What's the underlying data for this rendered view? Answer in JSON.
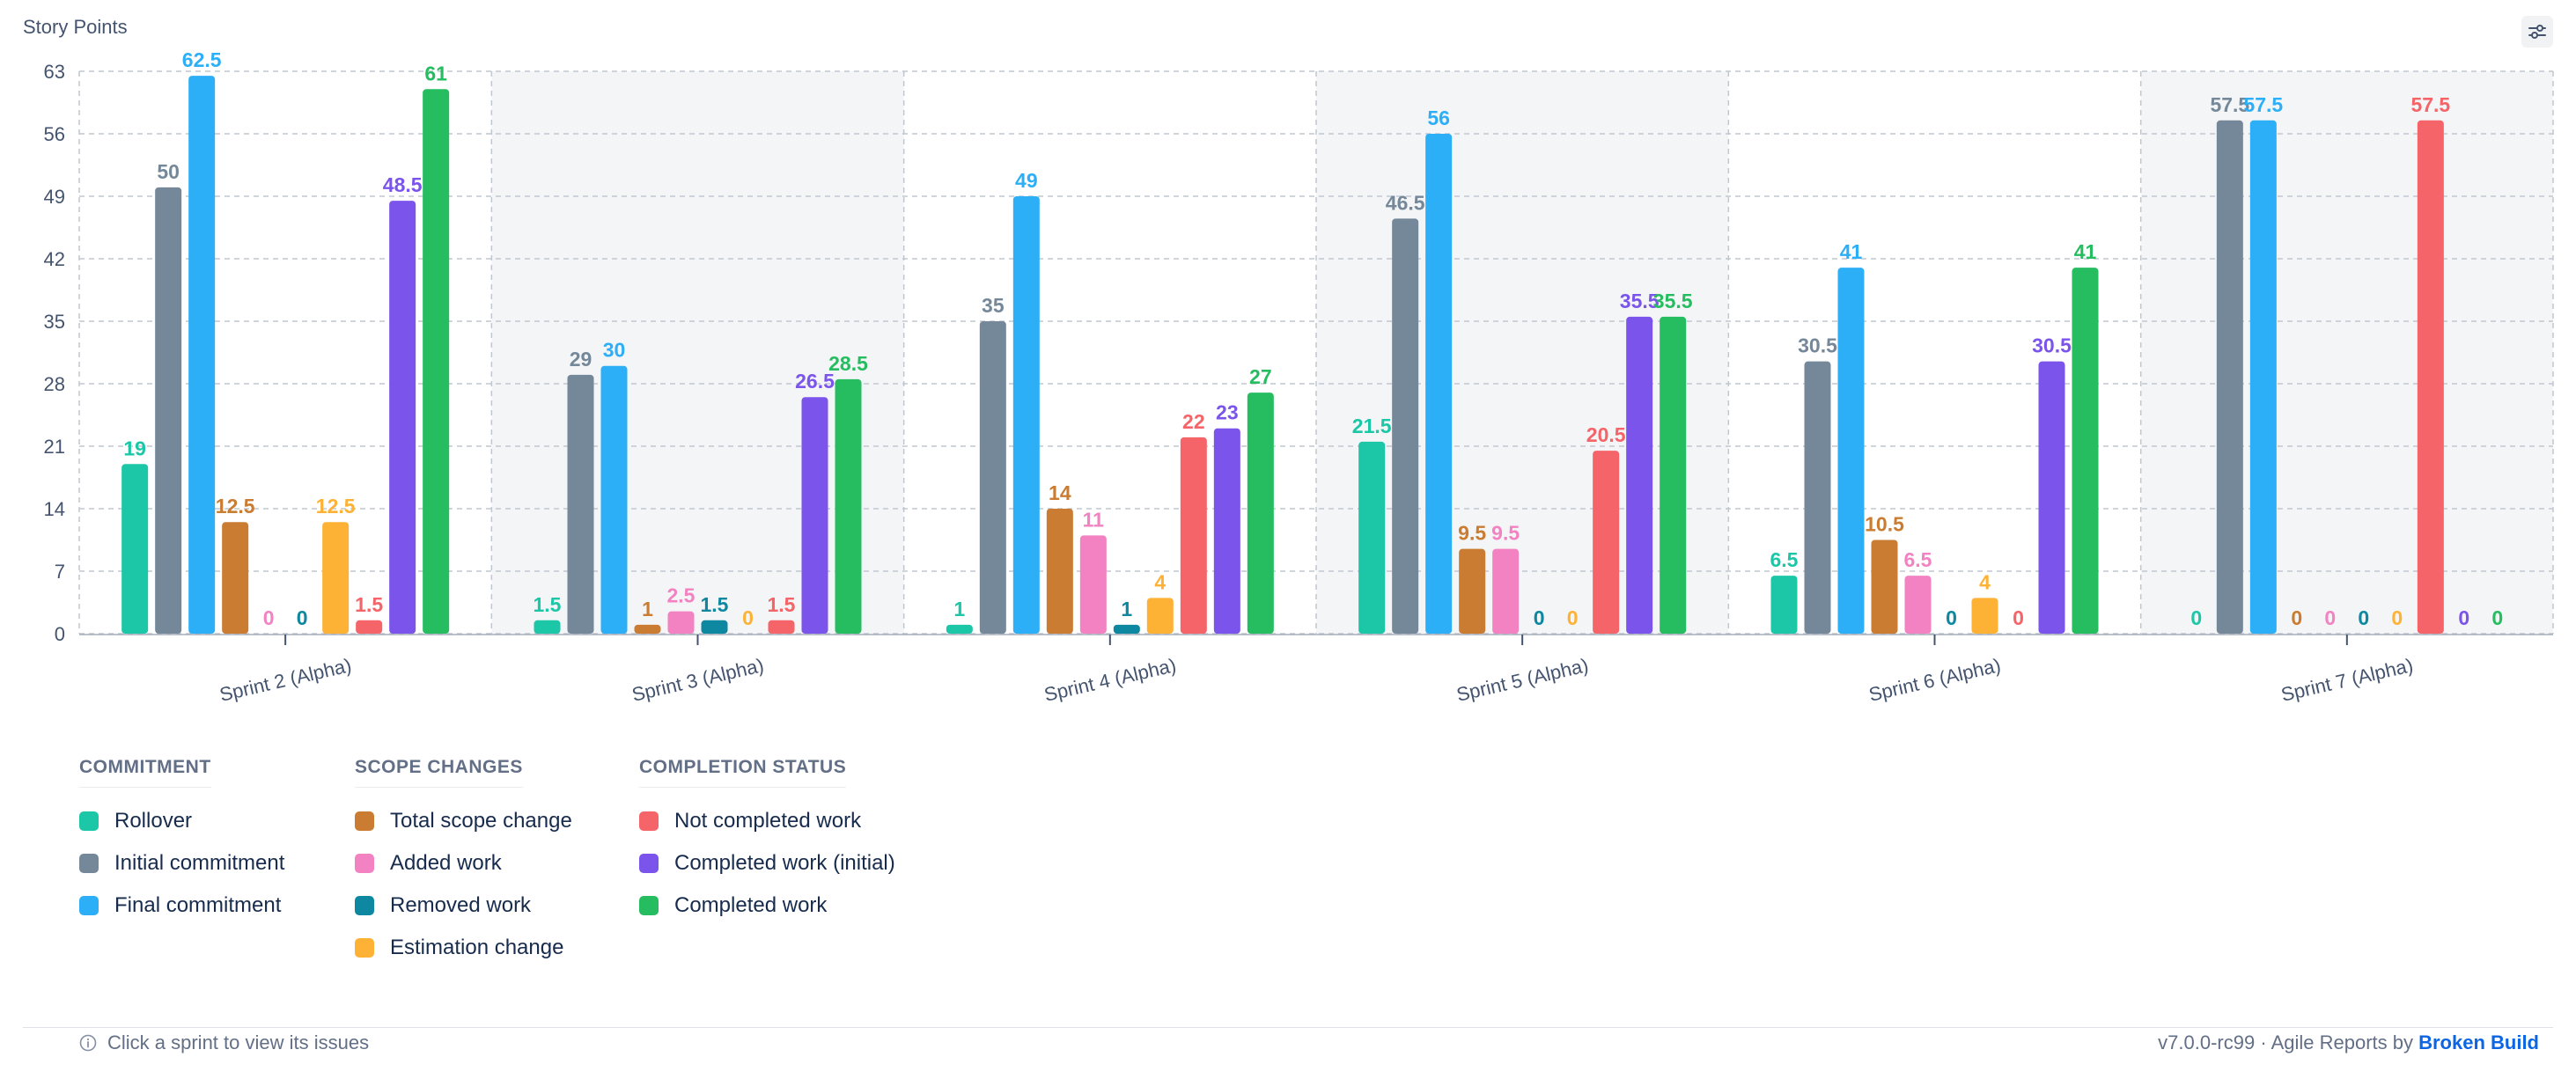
{
  "chart_data": {
    "type": "bar",
    "ylabel": "Story Points",
    "ylim": [
      0,
      63
    ],
    "yticks": [
      "0",
      "7",
      "14",
      "21",
      "28",
      "35",
      "42",
      "49",
      "56",
      "63"
    ],
    "grid": true,
    "categories": [
      "Sprint 2 (Alpha)",
      "Sprint 3 (Alpha)",
      "Sprint 4 (Alpha)",
      "Sprint 5 (Alpha)",
      "Sprint 6 (Alpha)",
      "Sprint 7 (Alpha)"
    ],
    "series": [
      {
        "name": "Rollover",
        "color": "#1cc7a7",
        "values": [
          19,
          1.5,
          1,
          21.5,
          6.5,
          0
        ],
        "labels": [
          "19",
          "1.5",
          "1",
          "21.5",
          "6.5",
          "0"
        ]
      },
      {
        "name": "Initial commitment",
        "color": "#758899",
        "values": [
          50,
          29,
          35,
          46.5,
          30.5,
          57.5
        ],
        "labels": [
          "50",
          "29",
          "35",
          "46.5",
          "30.5",
          "57.5"
        ]
      },
      {
        "name": "Final commitment",
        "color": "#2daff7",
        "values": [
          62.5,
          30,
          49,
          56,
          41,
          57.5
        ],
        "labels": [
          "62.5",
          "30",
          "49",
          "56",
          "41",
          "57.5"
        ]
      },
      {
        "name": "Total scope change",
        "color": "#c97c32",
        "values": [
          12.5,
          1,
          14,
          9.5,
          10.5,
          0
        ],
        "labels": [
          "12.5",
          "1",
          "14",
          "9.5",
          "10.5",
          "0"
        ]
      },
      {
        "name": "Added work",
        "color": "#f282c2",
        "values": [
          0,
          2.5,
          11,
          9.5,
          6.5,
          0
        ],
        "labels": [
          "0",
          "2.5",
          "11",
          "9.5",
          "6.5",
          "0"
        ]
      },
      {
        "name": "Removed work",
        "color": "#0e87a0",
        "values": [
          0,
          1.5,
          1,
          0,
          0,
          0
        ],
        "labels": [
          "0",
          "1.5",
          "1",
          "0",
          "0",
          "0"
        ]
      },
      {
        "name": "Estimation change",
        "color": "#fdb236",
        "values": [
          12.5,
          0,
          4,
          0,
          4,
          0
        ],
        "labels": [
          "12.5",
          "0",
          "4",
          "0",
          "4",
          "0"
        ]
      },
      {
        "name": "Not completed work",
        "color": "#f46468",
        "values": [
          1.5,
          1.5,
          22,
          20.5,
          0,
          57.5
        ],
        "labels": [
          "1.5",
          "1.5",
          "22",
          "20.5",
          "0",
          "57.5"
        ]
      },
      {
        "name": "Completed work (initial)",
        "color": "#7b54eb",
        "values": [
          48.5,
          26.5,
          23,
          35.5,
          30.5,
          0
        ],
        "labels": [
          "48.5",
          "26.5",
          "23",
          "35.5",
          "30.5",
          "0"
        ]
      },
      {
        "name": "Completed work",
        "color": "#25bd5f",
        "values": [
          61,
          28.5,
          27,
          35.5,
          41,
          0
        ],
        "labels": [
          "61",
          "28.5",
          "27",
          "35.5",
          "41",
          "0"
        ]
      }
    ]
  },
  "legend": {
    "groups": [
      {
        "title": "COMMITMENT",
        "items": [
          {
            "label": "Rollover",
            "color": "#1cc7a7"
          },
          {
            "label": "Initial commitment",
            "color": "#758899"
          },
          {
            "label": "Final commitment",
            "color": "#2daff7"
          }
        ]
      },
      {
        "title": "SCOPE CHANGES",
        "items": [
          {
            "label": "Total scope change",
            "color": "#c97c32"
          },
          {
            "label": "Added work",
            "color": "#f282c2"
          },
          {
            "label": "Removed work",
            "color": "#0e87a0"
          },
          {
            "label": "Estimation change",
            "color": "#fdb236"
          }
        ]
      },
      {
        "title": "COMPLETION STATUS",
        "items": [
          {
            "label": "Not completed work",
            "color": "#f46468"
          },
          {
            "label": "Completed work (initial)",
            "color": "#7b54eb"
          },
          {
            "label": "Completed work",
            "color": "#25bd5f"
          }
        ]
      }
    ]
  },
  "footer": {
    "hint": "Click a sprint to view its issues",
    "version": "v7.0.0-rc99 · Agile Reports by ",
    "brand": "Broken Build"
  },
  "icons": {
    "settings": "sliders-icon",
    "info": "info-icon"
  }
}
